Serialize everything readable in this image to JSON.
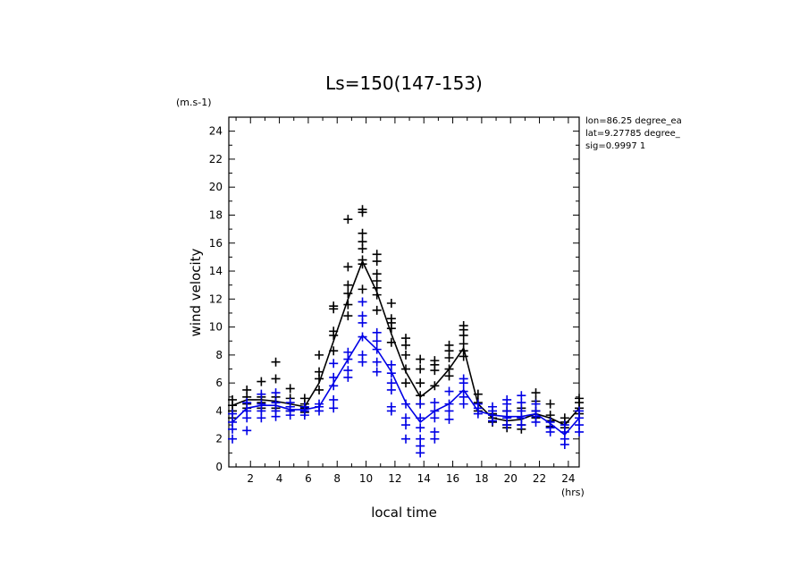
{
  "chart_data": {
    "type": "scatter",
    "title": "Ls=150(147-153)",
    "xlabel": "local time",
    "ylabel": "wind velocity",
    "xunit": "(hrs)",
    "yunit": "(m.s-1)",
    "xlim": [
      0.5,
      24.75
    ],
    "ylim": [
      0,
      25
    ],
    "xticks": [
      2,
      4,
      6,
      8,
      10,
      12,
      14,
      16,
      18,
      20,
      22,
      24
    ],
    "yticks": [
      0,
      2,
      4,
      6,
      8,
      10,
      12,
      14,
      16,
      18,
      20,
      22,
      24
    ],
    "grid": false,
    "info": [
      "lon=86.25 degree_ea",
      "lat=9.27785 degree_",
      "sig=0.9997 1"
    ],
    "series": [
      {
        "color": "#000000",
        "mean_line": {
          "x": [
            0.75,
            1.75,
            2.75,
            3.75,
            4.75,
            5.75,
            6.75,
            7.75,
            8.75,
            9.75,
            10.75,
            11.75,
            12.75,
            13.75,
            14.75,
            15.75,
            16.75,
            17.75,
            18.75,
            19.75,
            20.75,
            21.75,
            22.75,
            23.75,
            24.75
          ],
          "y": [
            4.4,
            4.8,
            4.8,
            4.7,
            4.5,
            4.3,
            6.0,
            9.0,
            12.0,
            14.7,
            12.5,
            9.5,
            6.8,
            5.0,
            5.8,
            7.0,
            8.5,
            4.5,
            3.5,
            3.3,
            3.4,
            3.8,
            3.5,
            3.0,
            4.2
          ]
        },
        "points": [
          [
            0.75,
            4.0
          ],
          [
            0.75,
            4.4
          ],
          [
            0.75,
            4.8
          ],
          [
            0.75,
            3.5
          ],
          [
            1.75,
            4.5
          ],
          [
            1.75,
            5.0
          ],
          [
            1.75,
            5.5
          ],
          [
            1.75,
            4.2
          ],
          [
            2.75,
            4.6
          ],
          [
            2.75,
            5.0
          ],
          [
            2.75,
            6.1
          ],
          [
            2.75,
            4.2
          ],
          [
            3.75,
            4.6
          ],
          [
            3.75,
            5.0
          ],
          [
            3.75,
            6.3
          ],
          [
            3.75,
            7.5
          ],
          [
            3.75,
            4.2
          ],
          [
            4.75,
            4.3
          ],
          [
            4.75,
            4.9
          ],
          [
            4.75,
            5.6
          ],
          [
            4.75,
            4.0
          ],
          [
            5.75,
            4.2
          ],
          [
            5.75,
            4.5
          ],
          [
            5.75,
            4.9
          ],
          [
            5.75,
            3.9
          ],
          [
            6.75,
            5.5
          ],
          [
            6.75,
            6.3
          ],
          [
            6.75,
            6.8
          ],
          [
            6.75,
            8.0
          ],
          [
            7.75,
            8.3
          ],
          [
            7.75,
            9.4
          ],
          [
            7.75,
            9.7
          ],
          [
            7.75,
            11.3
          ],
          [
            7.75,
            11.5
          ],
          [
            8.75,
            10.8
          ],
          [
            8.75,
            11.6
          ],
          [
            8.75,
            12.4
          ],
          [
            8.75,
            13.0
          ],
          [
            8.75,
            14.3
          ],
          [
            8.75,
            17.7
          ],
          [
            9.75,
            12.7
          ],
          [
            9.75,
            14.5
          ],
          [
            9.75,
            14.8
          ],
          [
            9.75,
            15.6
          ],
          [
            9.75,
            16.1
          ],
          [
            9.75,
            16.7
          ],
          [
            9.75,
            18.2
          ],
          [
            9.75,
            18.4
          ],
          [
            10.75,
            11.2
          ],
          [
            10.75,
            12.3
          ],
          [
            10.75,
            12.8
          ],
          [
            10.75,
            13.3
          ],
          [
            10.75,
            13.8
          ],
          [
            10.75,
            14.7
          ],
          [
            10.75,
            15.2
          ],
          [
            11.75,
            8.9
          ],
          [
            11.75,
            9.9
          ],
          [
            11.75,
            10.3
          ],
          [
            11.75,
            10.6
          ],
          [
            11.75,
            11.7
          ],
          [
            12.75,
            6.0
          ],
          [
            12.75,
            7.0
          ],
          [
            12.75,
            8.0
          ],
          [
            12.75,
            8.7
          ],
          [
            12.75,
            9.2
          ],
          [
            13.75,
            4.5
          ],
          [
            13.75,
            5.1
          ],
          [
            13.75,
            6.0
          ],
          [
            13.75,
            7.0
          ],
          [
            13.75,
            7.7
          ],
          [
            14.75,
            5.8
          ],
          [
            14.75,
            6.9
          ],
          [
            14.75,
            7.3
          ],
          [
            14.75,
            7.6
          ],
          [
            15.75,
            6.5
          ],
          [
            15.75,
            7.0
          ],
          [
            15.75,
            7.8
          ],
          [
            15.75,
            8.3
          ],
          [
            15.75,
            8.7
          ],
          [
            16.75,
            7.9
          ],
          [
            16.75,
            8.3
          ],
          [
            16.75,
            8.8
          ],
          [
            16.75,
            9.4
          ],
          [
            16.75,
            9.8
          ],
          [
            16.75,
            10.1
          ],
          [
            17.75,
            4.0
          ],
          [
            17.75,
            4.6
          ],
          [
            17.75,
            5.2
          ],
          [
            18.75,
            3.2
          ],
          [
            18.75,
            3.5
          ],
          [
            18.75,
            3.8
          ],
          [
            19.75,
            2.8
          ],
          [
            19.75,
            3.0
          ],
          [
            19.75,
            3.5
          ],
          [
            19.75,
            4.0
          ],
          [
            20.75,
            2.7
          ],
          [
            20.75,
            3.0
          ],
          [
            20.75,
            3.5
          ],
          [
            20.75,
            4.2
          ],
          [
            21.75,
            3.5
          ],
          [
            21.75,
            4.0
          ],
          [
            21.75,
            4.7
          ],
          [
            21.75,
            5.3
          ],
          [
            22.75,
            2.9
          ],
          [
            22.75,
            3.3
          ],
          [
            22.75,
            3.7
          ],
          [
            22.75,
            4.5
          ],
          [
            23.75,
            2.8
          ],
          [
            23.75,
            3.2
          ],
          [
            23.75,
            3.5
          ],
          [
            24.75,
            3.8
          ],
          [
            24.75,
            4.2
          ],
          [
            24.75,
            4.6
          ],
          [
            24.75,
            4.9
          ]
        ]
      },
      {
        "color": "#0000e6",
        "mean_line": {
          "x": [
            0.75,
            1.75,
            2.75,
            3.75,
            4.75,
            5.75,
            6.75,
            7.75,
            8.75,
            9.75,
            10.75,
            11.75,
            12.75,
            13.75,
            14.75,
            15.75,
            16.75,
            17.75,
            18.75,
            19.75,
            20.75,
            21.75,
            22.75,
            23.75,
            24.75
          ],
          "y": [
            3.2,
            4.2,
            4.4,
            4.4,
            4.1,
            4.1,
            4.3,
            6.0,
            7.7,
            9.4,
            8.4,
            6.8,
            4.6,
            3.2,
            4.0,
            4.5,
            5.5,
            4.0,
            3.7,
            3.6,
            3.6,
            3.8,
            3.1,
            2.3,
            3.5
          ]
        },
        "points": [
          [
            0.75,
            2.0
          ],
          [
            0.75,
            2.7
          ],
          [
            0.75,
            3.2
          ],
          [
            0.75,
            3.8
          ],
          [
            1.75,
            2.6
          ],
          [
            1.75,
            3.5
          ],
          [
            1.75,
            4.0
          ],
          [
            1.75,
            4.6
          ],
          [
            2.75,
            3.5
          ],
          [
            2.75,
            4.0
          ],
          [
            2.75,
            4.5
          ],
          [
            2.75,
            5.2
          ],
          [
            3.75,
            3.6
          ],
          [
            3.75,
            4.0
          ],
          [
            3.75,
            4.6
          ],
          [
            3.75,
            5.3
          ],
          [
            4.75,
            3.7
          ],
          [
            4.75,
            4.0
          ],
          [
            4.75,
            4.3
          ],
          [
            4.75,
            4.6
          ],
          [
            5.75,
            3.7
          ],
          [
            5.75,
            4.0
          ],
          [
            5.75,
            4.3
          ],
          [
            6.75,
            4.0
          ],
          [
            6.75,
            4.3
          ],
          [
            6.75,
            4.5
          ],
          [
            7.75,
            4.2
          ],
          [
            7.75,
            4.8
          ],
          [
            7.75,
            5.8
          ],
          [
            7.75,
            6.4
          ],
          [
            7.75,
            7.4
          ],
          [
            8.75,
            6.4
          ],
          [
            8.75,
            6.9
          ],
          [
            8.75,
            7.7
          ],
          [
            8.75,
            8.2
          ],
          [
            9.75,
            7.5
          ],
          [
            9.75,
            8.0
          ],
          [
            9.75,
            9.3
          ],
          [
            9.75,
            10.3
          ],
          [
            9.75,
            10.8
          ],
          [
            9.75,
            11.8
          ],
          [
            10.75,
            6.8
          ],
          [
            10.75,
            7.5
          ],
          [
            10.75,
            8.4
          ],
          [
            10.75,
            9.0
          ],
          [
            10.75,
            9.6
          ],
          [
            11.75,
            4.0
          ],
          [
            11.75,
            4.3
          ],
          [
            11.75,
            5.5
          ],
          [
            11.75,
            6.0
          ],
          [
            11.75,
            6.7
          ],
          [
            11.75,
            7.3
          ],
          [
            12.75,
            2.0
          ],
          [
            12.75,
            3.0
          ],
          [
            12.75,
            3.5
          ],
          [
            12.75,
            4.5
          ],
          [
            13.75,
            1.0
          ],
          [
            13.75,
            1.5
          ],
          [
            13.75,
            2.0
          ],
          [
            13.75,
            2.8
          ],
          [
            13.75,
            3.5
          ],
          [
            13.75,
            4.5
          ],
          [
            14.75,
            2.0
          ],
          [
            14.75,
            2.5
          ],
          [
            14.75,
            3.5
          ],
          [
            14.75,
            4.0
          ],
          [
            14.75,
            4.6
          ],
          [
            15.75,
            3.4
          ],
          [
            15.75,
            4.0
          ],
          [
            15.75,
            4.5
          ],
          [
            15.75,
            5.4
          ],
          [
            16.75,
            4.5
          ],
          [
            16.75,
            5.0
          ],
          [
            16.75,
            5.4
          ],
          [
            16.75,
            6.0
          ],
          [
            16.75,
            6.3
          ],
          [
            17.75,
            3.8
          ],
          [
            17.75,
            4.2
          ],
          [
            17.75,
            4.5
          ],
          [
            18.75,
            3.3
          ],
          [
            18.75,
            3.7
          ],
          [
            18.75,
            4.0
          ],
          [
            18.75,
            4.3
          ],
          [
            19.75,
            3.0
          ],
          [
            19.75,
            3.5
          ],
          [
            19.75,
            4.0
          ],
          [
            19.75,
            4.5
          ],
          [
            19.75,
            4.8
          ],
          [
            20.75,
            3.0
          ],
          [
            20.75,
            3.5
          ],
          [
            20.75,
            4.0
          ],
          [
            20.75,
            4.6
          ],
          [
            20.75,
            5.1
          ],
          [
            21.75,
            3.2
          ],
          [
            21.75,
            3.6
          ],
          [
            21.75,
            4.0
          ],
          [
            21.75,
            4.5
          ],
          [
            22.75,
            2.5
          ],
          [
            22.75,
            2.8
          ],
          [
            22.75,
            3.2
          ],
          [
            23.75,
            1.6
          ],
          [
            23.75,
            2.0
          ],
          [
            23.75,
            2.5
          ],
          [
            23.75,
            3.0
          ],
          [
            24.75,
            2.5
          ],
          [
            24.75,
            3.0
          ],
          [
            24.75,
            3.5
          ],
          [
            24.75,
            4.0
          ]
        ]
      }
    ]
  }
}
